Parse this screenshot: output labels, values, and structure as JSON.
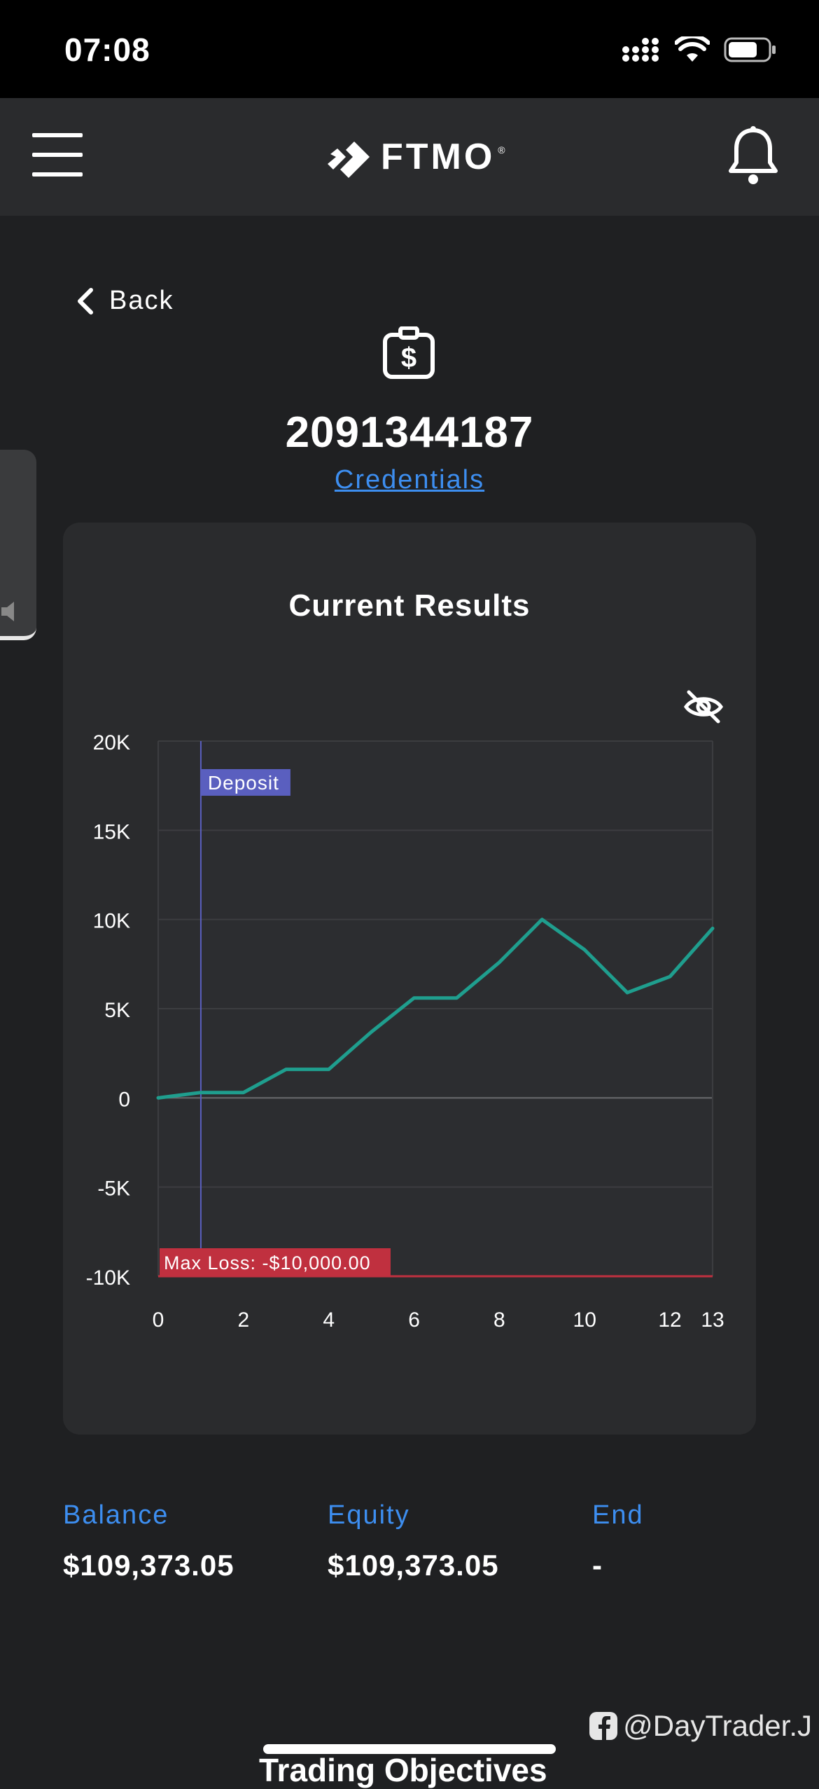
{
  "status_bar": {
    "time": "07:08"
  },
  "header": {
    "logo_text": "FTMO",
    "logo_reg": "®"
  },
  "nav": {
    "back_label": "Back"
  },
  "account": {
    "number": "2091344187",
    "credentials_label": "Credentials"
  },
  "results": {
    "title": "Current Results"
  },
  "chart_data": {
    "type": "line",
    "x": [
      0,
      1,
      2,
      3,
      4,
      5,
      6,
      7,
      8,
      9,
      10,
      11,
      12,
      13
    ],
    "series": [
      {
        "values": [
          0,
          300,
          300,
          1600,
          1600,
          3700,
          5600,
          5600,
          7600,
          10000,
          8300,
          5900,
          6800,
          9500
        ]
      }
    ],
    "x_ticks": [
      "0",
      "2",
      "4",
      "6",
      "8",
      "10",
      "12",
      "13"
    ],
    "x_tick_values": [
      0,
      2,
      4,
      6,
      8,
      10,
      12,
      13
    ],
    "y_ticks": [
      "20K",
      "15K",
      "10K",
      "5K",
      "0",
      "-5K",
      "-10K"
    ],
    "y_tick_values": [
      20000,
      15000,
      10000,
      5000,
      0,
      -5000,
      -10000
    ],
    "xlim": [
      0,
      13
    ],
    "ylim": [
      -10000,
      20000
    ],
    "grid": true,
    "annotations": {
      "deposit": {
        "label": "Deposit",
        "x": 1
      },
      "max_loss": {
        "label": "Max Loss: -$10,000.00",
        "y": -10000
      }
    },
    "colors": {
      "line": "#1f9e8e",
      "deposit": "#5a5fbf",
      "max_loss": "#c0303f"
    }
  },
  "stats": {
    "balance_label": "Balance",
    "balance_value": "$109,373.05",
    "equity_label": "Equity",
    "equity_value": "$109,373.05",
    "end_label": "End",
    "end_value": "-"
  },
  "watermark": {
    "text": "@DayTrader.J"
  },
  "footer": {
    "peek_text": "Trading Objectives"
  },
  "colors": {
    "accent": "#3d8ef0",
    "background": "#1f2022",
    "card": "#2a2b2d"
  }
}
